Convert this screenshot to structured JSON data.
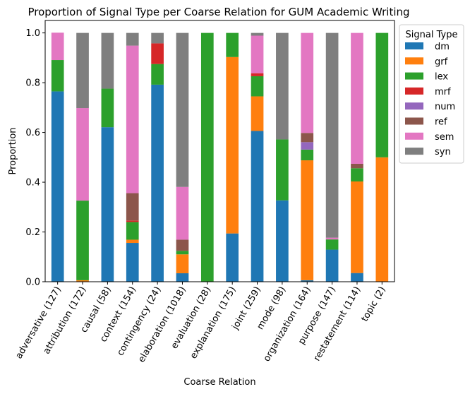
{
  "chart_data": {
    "type": "bar",
    "stacked": true,
    "title": "Proportion of Signal Type per Coarse Relation for GUM Academic Writing",
    "xlabel": "Coarse Relation",
    "ylabel": "Proportion",
    "ylim": [
      0,
      1.05
    ],
    "yticks": [
      "0.0",
      "0.2",
      "0.4",
      "0.6",
      "0.8",
      "1.0"
    ],
    "grid": false,
    "legend": {
      "title": "Signal Type",
      "placement": "outside-right"
    },
    "categories": [
      "adversative (127)",
      "attribution (172)",
      "causal (58)",
      "context (154)",
      "contingency (24)",
      "elaboration (1018)",
      "evaluation (28)",
      "explanation (175)",
      "joint (259)",
      "mode (98)",
      "organization (164)",
      "purpose (147)",
      "restatement (114)",
      "topic (2)"
    ],
    "series": [
      {
        "name": "dm",
        "color": "#1f77b4",
        "values": [
          0.765,
          0.0,
          0.621,
          0.156,
          0.792,
          0.034,
          0.0,
          0.194,
          0.606,
          0.327,
          0.006,
          0.129,
          0.035,
          0.0
        ]
      },
      {
        "name": "grf",
        "color": "#ff7f0e",
        "values": [
          0.0,
          0.006,
          0.0,
          0.013,
          0.0,
          0.076,
          0.0,
          0.709,
          0.139,
          0.0,
          0.482,
          0.0,
          0.368,
          0.5
        ]
      },
      {
        "name": "lex",
        "color": "#2ca02c",
        "values": [
          0.126,
          0.32,
          0.155,
          0.071,
          0.083,
          0.014,
          1.0,
          0.097,
          0.081,
          0.245,
          0.043,
          0.041,
          0.053,
          0.5
        ]
      },
      {
        "name": "mrf",
        "color": "#d62728",
        "values": [
          0.0,
          0.0,
          0.0,
          0.006,
          0.083,
          0.0,
          0.0,
          0.0,
          0.012,
          0.0,
          0.0,
          0.0,
          0.0,
          0.0
        ]
      },
      {
        "name": "num",
        "color": "#9467bd",
        "values": [
          0.0,
          0.0,
          0.0,
          0.0,
          0.0,
          0.0,
          0.0,
          0.0,
          0.0,
          0.0,
          0.03,
          0.0,
          0.0,
          0.0
        ]
      },
      {
        "name": "ref",
        "color": "#8c564b",
        "values": [
          0.0,
          0.0,
          0.0,
          0.11,
          0.0,
          0.045,
          0.0,
          0.0,
          0.0,
          0.0,
          0.037,
          0.0,
          0.018,
          0.0
        ]
      },
      {
        "name": "sem",
        "color": "#e377c2",
        "values": [
          0.11,
          0.372,
          0.0,
          0.593,
          0.0,
          0.212,
          0.0,
          0.0,
          0.151,
          0.0,
          0.402,
          0.007,
          0.526,
          0.0
        ]
      },
      {
        "name": "syn",
        "color": "#7f7f7f",
        "values": [
          0.0,
          0.302,
          0.224,
          0.051,
          0.042,
          0.619,
          0.0,
          0.0,
          0.011,
          0.428,
          0.0,
          0.823,
          0.0,
          0.0
        ]
      }
    ]
  }
}
